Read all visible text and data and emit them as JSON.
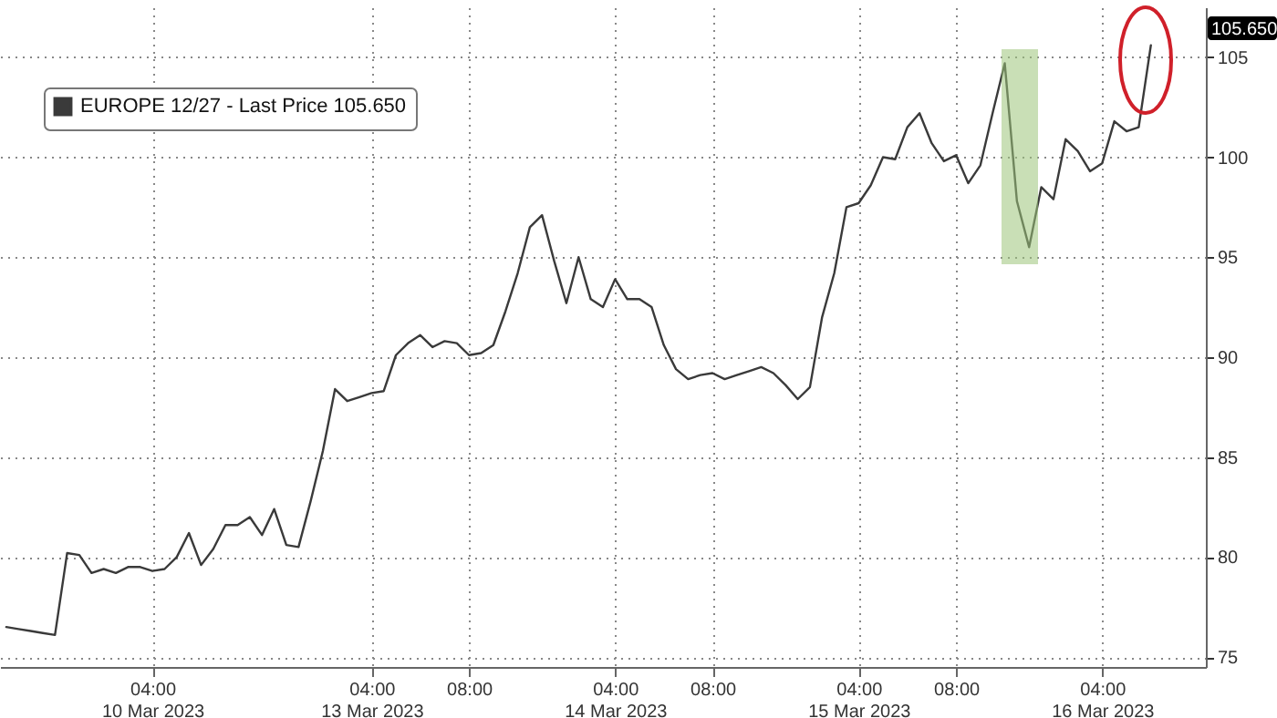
{
  "chart_data": {
    "type": "line",
    "categories": [
      null,
      null,
      null,
      null,
      null,
      null,
      null,
      null,
      null,
      null,
      null,
      null,
      "04:00\n10 Mar 2023",
      null,
      null,
      null,
      null,
      null,
      null,
      null,
      null,
      null,
      null,
      null,
      null,
      null,
      null,
      null,
      null,
      null,
      "04:00\n13 Mar 2023",
      null,
      null,
      null,
      null,
      null,
      null,
      null,
      "08:00",
      null,
      null,
      null,
      null,
      null,
      null,
      null,
      null,
      null,
      null,
      null,
      "04:00\n14 Mar 2023",
      null,
      null,
      null,
      null,
      null,
      null,
      null,
      "08:00",
      null,
      null,
      null,
      null,
      null,
      null,
      null,
      null,
      null,
      null,
      null,
      "04:00\n15 Mar 2023",
      null,
      null,
      null,
      null,
      null,
      null,
      null,
      "08:00",
      null,
      null,
      null,
      null,
      null,
      null,
      null,
      null,
      null,
      null,
      null,
      "04:00\n16 Mar 2023",
      null,
      null,
      null,
      null,
      null,
      null,
      null,
      null
    ],
    "series": [
      {
        "name": "EUROPE 12/27 - Last Price 105.650",
        "color": "#3a3a3a",
        "values": [
          76.5,
          76.4,
          76.3,
          76.2,
          76.1,
          80.2,
          80.1,
          79.2,
          79.4,
          79.2,
          79.5,
          79.5,
          79.3,
          79.4,
          80.0,
          81.2,
          79.6,
          80.4,
          81.6,
          81.6,
          82.0,
          81.1,
          82.4,
          80.6,
          80.5,
          82.8,
          85.3,
          88.4,
          87.8,
          88.0,
          88.2,
          88.3,
          90.1,
          90.7,
          91.1,
          90.5,
          90.8,
          90.7,
          90.1,
          90.2,
          90.6,
          92.3,
          94.2,
          96.5,
          97.1,
          94.8,
          92.7,
          95.0,
          92.9,
          92.5,
          93.9,
          92.9,
          92.9,
          92.5,
          90.6,
          89.4,
          88.9,
          89.1,
          89.2,
          88.9,
          89.1,
          89.3,
          89.5,
          89.2,
          88.6,
          87.9,
          88.5,
          92.0,
          94.2,
          97.5,
          97.7,
          98.6,
          100.0,
          99.9,
          101.5,
          102.2,
          100.7,
          99.8,
          100.1,
          98.7,
          99.6,
          102.2,
          104.7,
          97.8,
          95.5,
          98.5,
          97.9,
          100.9,
          100.3,
          99.3,
          99.7,
          101.8,
          101.3,
          101.5,
          105.6,
          null,
          null,
          null,
          null
        ]
      }
    ],
    "ylim": [
      74.5,
      107.5
    ],
    "yticks": [
      75,
      80,
      85,
      90,
      95,
      100,
      105
    ],
    "grid": true,
    "legend": "top left",
    "annotations": [
      "105.650"
    ]
  }
}
